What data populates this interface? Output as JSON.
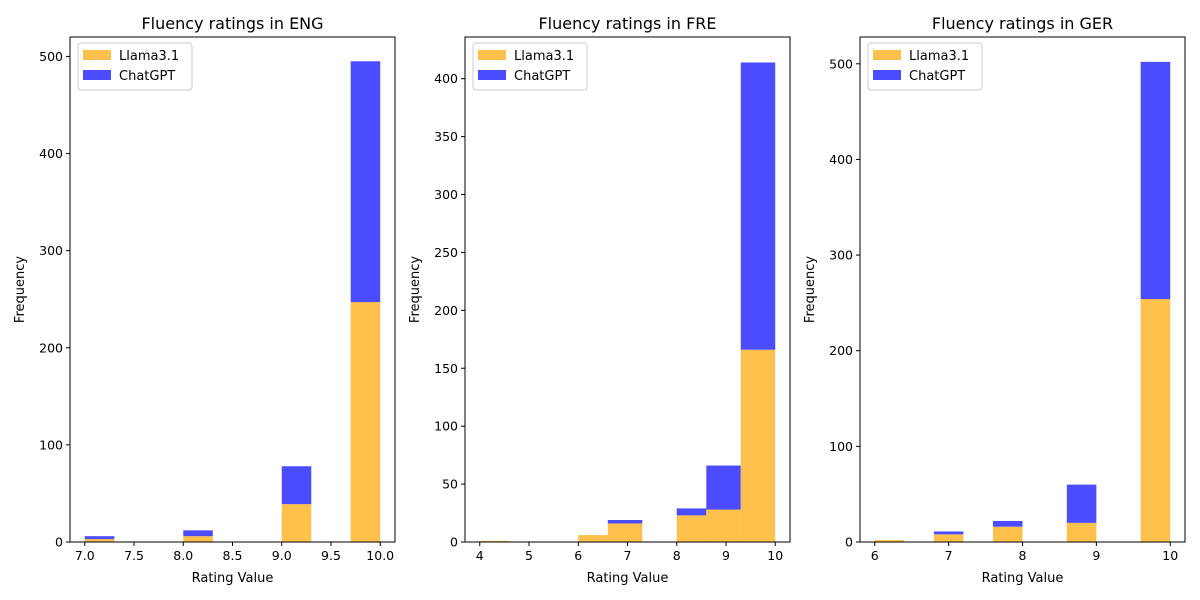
{
  "colors": {
    "llama": "#ffa500",
    "chatgpt": "#0000ff"
  },
  "chart_data": [
    {
      "type": "bar",
      "stacked": true,
      "title": "Fluency ratings in ENG",
      "xlabel": "Rating Value",
      "ylabel": "Frequency",
      "xlim": [
        6.85,
        10.15
      ],
      "ylim": [
        0,
        520
      ],
      "xticks": [
        7.0,
        7.5,
        8.0,
        8.5,
        9.0,
        9.5,
        10.0
      ],
      "xtick_labels": [
        "7.0",
        "7.5",
        "8.0",
        "8.5",
        "9.0",
        "9.5",
        "10.0"
      ],
      "yticks": [
        0,
        100,
        200,
        300,
        400,
        500
      ],
      "ytick_labels": [
        "0",
        "100",
        "200",
        "300",
        "400",
        "500"
      ],
      "bin_edges": [
        7.0,
        7.3,
        7.6,
        7.9,
        8.2,
        8.5,
        8.8,
        9.1,
        9.4,
        9.7,
        10.0
      ],
      "bar_span": [
        [
          7.0,
          7.3
        ],
        [
          8.0,
          8.3
        ],
        [
          9.0,
          9.3
        ],
        [
          9.7,
          10.0
        ]
      ],
      "legend": [
        "Llama3.1",
        "ChatGPT"
      ],
      "legend_position": "top-left",
      "series": [
        {
          "name": "Llama3.1",
          "values": [
            3,
            6,
            39,
            247
          ]
        },
        {
          "name": "ChatGPT",
          "values": [
            3,
            6,
            39,
            248
          ]
        }
      ]
    },
    {
      "type": "bar",
      "stacked": true,
      "title": "Fluency ratings in FRE",
      "xlabel": "Rating Value",
      "ylabel": "Frequency",
      "xlim": [
        3.7,
        10.3
      ],
      "ylim": [
        0,
        436
      ],
      "xticks": [
        4,
        5,
        6,
        7,
        8,
        9,
        10
      ],
      "xtick_labels": [
        "4",
        "5",
        "6",
        "7",
        "8",
        "9",
        "10"
      ],
      "yticks": [
        0,
        50,
        100,
        150,
        200,
        250,
        300,
        350,
        400
      ],
      "ytick_labels": [
        "0",
        "50",
        "100",
        "150",
        "200",
        "250",
        "300",
        "350",
        "400"
      ],
      "bar_span": [
        [
          4.0,
          4.6
        ],
        [
          6.0,
          6.6
        ],
        [
          6.6,
          7.3
        ],
        [
          8.0,
          8.6
        ],
        [
          8.6,
          9.3
        ],
        [
          9.3,
          10.0
        ]
      ],
      "legend": [
        "Llama3.1",
        "ChatGPT"
      ],
      "legend_position": "top-left",
      "series": [
        {
          "name": "Llama3.1",
          "values": [
            1,
            6,
            16,
            23,
            28,
            166
          ]
        },
        {
          "name": "ChatGPT",
          "values": [
            0,
            0,
            3,
            6,
            38,
            248
          ]
        }
      ]
    },
    {
      "type": "bar",
      "stacked": true,
      "title": "Fluency ratings in GER",
      "xlabel": "Rating Value",
      "ylabel": "Frequency",
      "xlim": [
        5.8,
        10.2
      ],
      "ylim": [
        0,
        528
      ],
      "xticks": [
        6,
        7,
        8,
        9,
        10
      ],
      "xtick_labels": [
        "6",
        "7",
        "8",
        "9",
        "10"
      ],
      "yticks": [
        0,
        100,
        200,
        300,
        400,
        500
      ],
      "ytick_labels": [
        "0",
        "100",
        "200",
        "300",
        "400",
        "500"
      ],
      "bar_span": [
        [
          6.0,
          6.4
        ],
        [
          6.8,
          7.2
        ],
        [
          7.6,
          8.0
        ],
        [
          8.6,
          9.0
        ],
        [
          9.6,
          10.0
        ]
      ],
      "legend": [
        "Llama3.1",
        "ChatGPT"
      ],
      "legend_position": "top-left",
      "series": [
        {
          "name": "Llama3.1",
          "values": [
            2,
            8,
            16,
            20,
            254
          ]
        },
        {
          "name": "ChatGPT",
          "values": [
            0,
            3,
            6,
            40,
            248
          ]
        }
      ]
    }
  ]
}
